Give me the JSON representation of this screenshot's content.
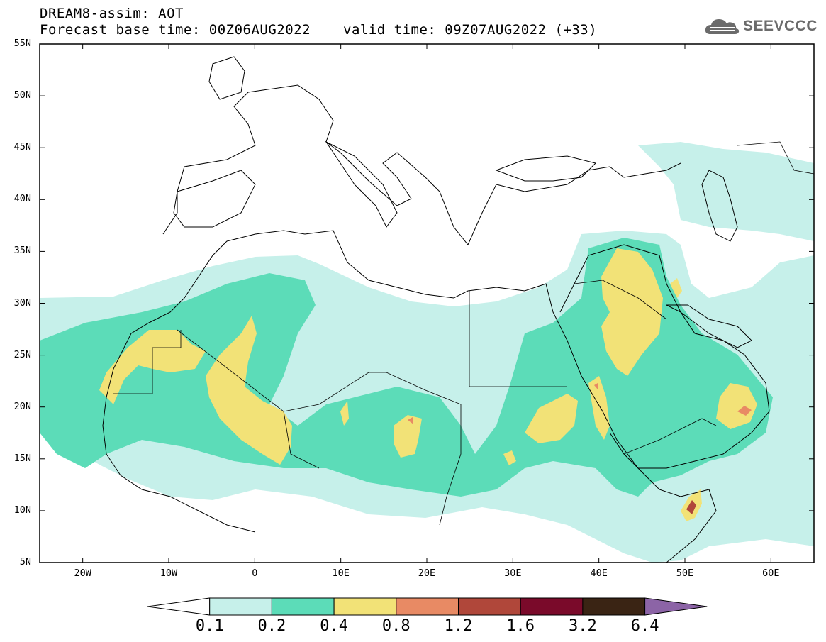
{
  "header": {
    "title": "DREAM8-assim: AOT",
    "base_time": "Forecast base time: 00Z06AUG2022",
    "valid_time": "valid time: 09Z07AUG2022 (+33)"
  },
  "logo": {
    "name": "SEEVCCC",
    "icon": "cloud-icon"
  },
  "axes": {
    "y_labels": [
      "55N",
      "50N",
      "45N",
      "40N",
      "35N",
      "30N",
      "25N",
      "20N",
      "15N",
      "10N",
      "5N"
    ],
    "x_labels": [
      "20W",
      "10W",
      "0",
      "10E",
      "20E",
      "30E",
      "40E",
      "50E",
      "60E"
    ],
    "lon_range": [
      -25,
      65
    ],
    "lat_range": [
      5,
      55
    ]
  },
  "colorbar": {
    "labels": [
      "0.1",
      "0.2",
      "0.4",
      "0.8",
      "1.2",
      "1.6",
      "3.2",
      "6.4"
    ],
    "colors": [
      "#ffffff",
      "#c6f0ea",
      "#5cdcb8",
      "#f2e277",
      "#e88a64",
      "#b0473a",
      "#7a0a2a",
      "#3a2414",
      "#8c64a6"
    ]
  }
}
